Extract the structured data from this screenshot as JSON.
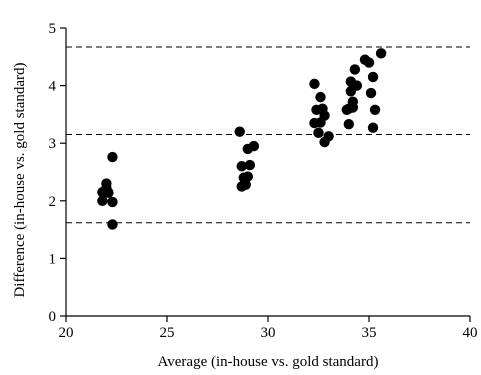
{
  "chart_data": {
    "type": "scatter",
    "xlabel": "Average (in-house vs. gold standard)",
    "ylabel": "Difference (in-house vs. gold standard)",
    "xlim": [
      20,
      40
    ],
    "ylim": [
      0,
      5
    ],
    "xticks": [
      20,
      25,
      30,
      35,
      40
    ],
    "yticks": [
      0,
      1,
      2,
      3,
      4,
      5
    ],
    "grid": false,
    "legend": "none",
    "reference_lines": [
      4.67,
      3.15,
      1.62
    ],
    "marker_color": "#000000",
    "points": [
      {
        "x": 21.8,
        "y": 2.0
      },
      {
        "x": 21.8,
        "y": 2.15
      },
      {
        "x": 22.0,
        "y": 2.22
      },
      {
        "x": 22.0,
        "y": 2.3
      },
      {
        "x": 22.1,
        "y": 2.14
      },
      {
        "x": 22.3,
        "y": 2.76
      },
      {
        "x": 22.3,
        "y": 1.98
      },
      {
        "x": 22.3,
        "y": 1.59
      },
      {
        "x": 28.6,
        "y": 3.2
      },
      {
        "x": 28.7,
        "y": 2.6
      },
      {
        "x": 28.7,
        "y": 2.25
      },
      {
        "x": 28.8,
        "y": 2.4
      },
      {
        "x": 28.9,
        "y": 2.28
      },
      {
        "x": 29.0,
        "y": 2.42
      },
      {
        "x": 29.0,
        "y": 2.9
      },
      {
        "x": 29.1,
        "y": 2.62
      },
      {
        "x": 29.3,
        "y": 2.95
      },
      {
        "x": 32.3,
        "y": 4.03
      },
      {
        "x": 32.3,
        "y": 3.35
      },
      {
        "x": 32.4,
        "y": 3.58
      },
      {
        "x": 32.5,
        "y": 3.18
      },
      {
        "x": 32.6,
        "y": 3.8
      },
      {
        "x": 32.6,
        "y": 3.36
      },
      {
        "x": 32.7,
        "y": 3.6
      },
      {
        "x": 32.8,
        "y": 3.48
      },
      {
        "x": 32.8,
        "y": 3.02
      },
      {
        "x": 33.0,
        "y": 3.12
      },
      {
        "x": 33.9,
        "y": 3.58
      },
      {
        "x": 34.0,
        "y": 3.33
      },
      {
        "x": 34.0,
        "y": 3.6
      },
      {
        "x": 34.1,
        "y": 3.9
      },
      {
        "x": 34.1,
        "y": 4.07
      },
      {
        "x": 34.2,
        "y": 3.72
      },
      {
        "x": 34.2,
        "y": 3.62
      },
      {
        "x": 34.3,
        "y": 4.28
      },
      {
        "x": 34.4,
        "y": 4.0
      },
      {
        "x": 34.8,
        "y": 4.45
      },
      {
        "x": 35.0,
        "y": 4.4
      },
      {
        "x": 35.1,
        "y": 3.87
      },
      {
        "x": 35.2,
        "y": 4.15
      },
      {
        "x": 35.2,
        "y": 3.27
      },
      {
        "x": 35.3,
        "y": 3.58
      },
      {
        "x": 35.6,
        "y": 4.56
      }
    ]
  }
}
